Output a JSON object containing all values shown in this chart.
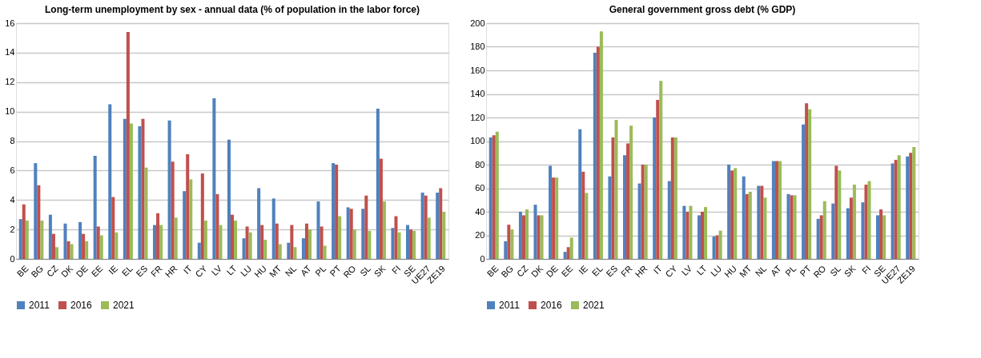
{
  "chart_data": [
    {
      "type": "bar",
      "title": "Long-term unemployment by sex - annual data (% of population in the labor force)",
      "categories": [
        "BE",
        "BG",
        "CZ",
        "DK",
        "DE",
        "EE",
        "IE",
        "EL",
        "ES",
        "FR",
        "HR",
        "IT",
        "CY",
        "LV",
        "LT",
        "LU",
        "HU",
        "MT",
        "NL",
        "AT",
        "PL",
        "PT",
        "RO",
        "SL",
        "SK",
        "FI",
        "SE",
        "UE27",
        "ZE19"
      ],
      "series": [
        {
          "name": "2011",
          "color": "#4f81bd",
          "values": [
            2.7,
            6.5,
            3.0,
            2.4,
            2.5,
            7.0,
            10.5,
            9.5,
            9.0,
            2.3,
            9.4,
            4.6,
            1.1,
            10.9,
            8.1,
            1.4,
            4.8,
            4.1,
            1.1,
            1.4,
            3.9,
            6.5,
            3.5,
            3.4,
            10.2,
            2.1,
            2.3,
            4.5,
            4.5
          ]
        },
        {
          "name": "2016",
          "color": "#c0504d",
          "values": [
            3.7,
            5.0,
            1.7,
            1.2,
            1.7,
            2.2,
            4.2,
            15.4,
            9.5,
            3.1,
            6.6,
            7.1,
            5.8,
            4.4,
            3.0,
            2.2,
            2.3,
            2.4,
            2.3,
            2.4,
            2.2,
            6.4,
            3.4,
            4.3,
            6.8,
            2.9,
            2.0,
            4.3,
            4.8
          ]
        },
        {
          "name": "2021",
          "color": "#9bbb59",
          "values": [
            2.6,
            2.6,
            0.8,
            1.0,
            1.2,
            1.6,
            1.8,
            9.2,
            6.2,
            2.3,
            2.8,
            5.4,
            2.6,
            2.3,
            2.6,
            1.8,
            1.3,
            1.0,
            0.8,
            2.0,
            0.9,
            2.9,
            2.0,
            1.9,
            3.9,
            1.8,
            1.9,
            2.8,
            3.2
          ]
        }
      ],
      "ylim": [
        0,
        16
      ],
      "yticks": [
        0,
        2,
        4,
        6,
        8,
        10,
        12,
        14,
        16
      ],
      "grid": "y",
      "legend": "bottom"
    },
    {
      "type": "bar",
      "title": "General government gross debt (% GDP)",
      "categories": [
        "BE",
        "BG",
        "CZ",
        "DK",
        "DE",
        "EE",
        "IE",
        "EL",
        "ES",
        "FR",
        "HR",
        "IT",
        "CY",
        "LV",
        "LT",
        "LU",
        "HU",
        "MT",
        "NL",
        "AT",
        "PL",
        "PT",
        "RO",
        "SL",
        "SK",
        "FI",
        "SE",
        "UE27",
        "ZE19"
      ],
      "series": [
        {
          "name": "2011",
          "color": "#4f81bd",
          "values": [
            103,
            15,
            40,
            46,
            79,
            6,
            110,
            175,
            70,
            88,
            64,
            120,
            66,
            45,
            37,
            19,
            80,
            70,
            62,
            83,
            55,
            114,
            34,
            47,
            43,
            48,
            37,
            81,
            87
          ]
        },
        {
          "name": "2016",
          "color": "#c0504d",
          "values": [
            105,
            29,
            37,
            37,
            69,
            10,
            74,
            180,
            103,
            98,
            80,
            135,
            103,
            40,
            40,
            20,
            75,
            55,
            62,
            83,
            54,
            132,
            37,
            79,
            52,
            63,
            42,
            84,
            90
          ]
        },
        {
          "name": "2021",
          "color": "#9bbb59",
          "values": [
            108,
            25,
            42,
            37,
            69,
            18,
            56,
            193,
            118,
            113,
            80,
            151,
            103,
            45,
            44,
            24,
            77,
            57,
            52,
            83,
            54,
            127,
            49,
            75,
            63,
            66,
            37,
            88,
            95
          ]
        }
      ],
      "ylim": [
        0,
        200
      ],
      "yticks": [
        0,
        20,
        40,
        60,
        80,
        100,
        120,
        140,
        160,
        180,
        200
      ],
      "grid": "y",
      "legend": "bottom"
    }
  ]
}
